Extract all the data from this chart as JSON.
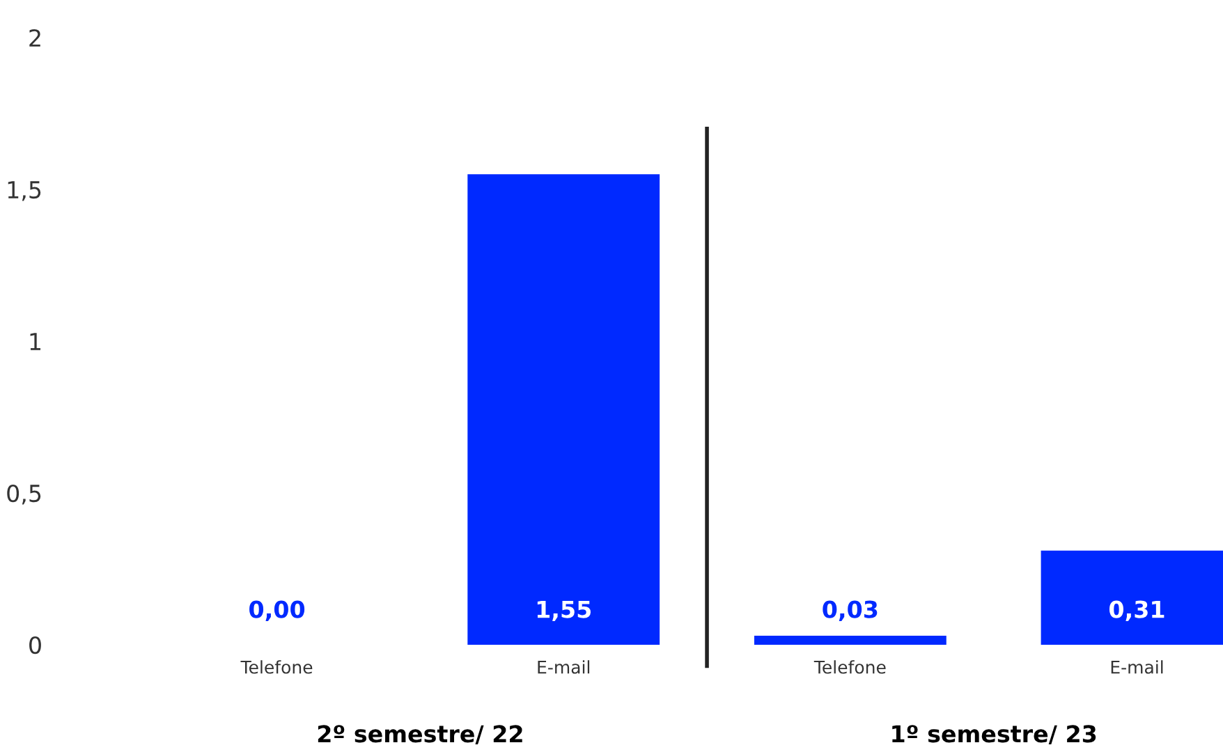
{
  "chart_data": {
    "type": "bar",
    "categories": [
      "Telefone",
      "E-mail",
      "Telefone",
      "E-mail"
    ],
    "values": [
      0.0,
      1.55,
      0.03,
      0.31
    ],
    "color": "#0029ff",
    "value_labels": [
      "0,00",
      "1,55",
      "0,03",
      "0,31"
    ],
    "ylim": [
      0,
      2
    ],
    "yticks": [
      0,
      {
        "value": 0.5,
        "label": "0,5"
      },
      1,
      {
        "value": 1.5,
        "label": "1,5"
      },
      2
    ],
    "grid": false,
    "annotations": [
      "2º semestre/ 22",
      "1º semestre/ 23"
    ]
  }
}
